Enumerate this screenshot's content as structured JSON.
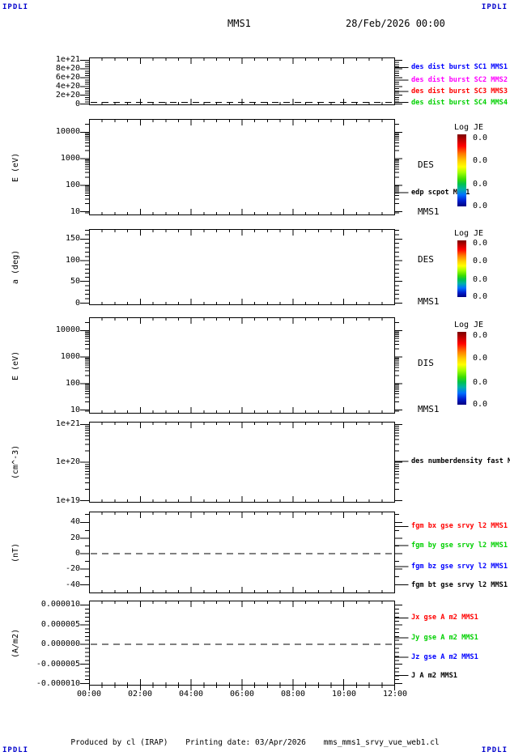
{
  "header": {
    "corner_left": "IPDLI",
    "corner_right": "IPDLI",
    "title": "MMS1",
    "datetime": "28/Feb/2026 00:00"
  },
  "footer": {
    "produced": "Produced by cl (IRAP)",
    "printing": "Printing date: 03/Apr/2026",
    "filename": "mms_mms1_srvy_vue_web1.cl",
    "corner_left": "IPDLI",
    "corner_right": "IPDLI"
  },
  "colors": {
    "brand_blue": "#0000cc",
    "trace_red": "#ff0000",
    "trace_green": "#00d000",
    "trace_blue": "#0000ff",
    "trace_magenta": "#ff00ff",
    "axis_black": "#000000"
  },
  "chart_data": {
    "type": "line",
    "title": "MMS1",
    "time_range": [
      "00:00",
      "12:00"
    ],
    "x_ticks": [
      "00:00",
      "02:00",
      "04:00",
      "06:00",
      "08:00",
      "10:00",
      "12:00"
    ],
    "x_minor_per_major": 4,
    "grid": false,
    "note": "All seven stacked panels are empty (no data traces drawn); only dashed zero-reference lines are visible in panels 1, 6 and 7. Colorbar tick labels all read 0.0.",
    "panels": [
      {
        "id": "des-dist-burst",
        "ylabel": "",
        "scale": "linear",
        "yrange": [
          0,
          1.05e+21
        ],
        "ndiv": 4,
        "dash_f": 0.95,
        "dash_value": 0,
        "yticks": [
          {
            "label": "1e+21",
            "f": 0.05
          },
          {
            "label": "8e+20",
            "f": 0.237
          },
          {
            "label": "6e+20",
            "f": 0.424
          },
          {
            "label": "4e+20",
            "f": 0.61
          },
          {
            "label": "2e+20",
            "f": 0.797
          },
          {
            "label": "0",
            "f": 0.983
          }
        ],
        "right_labels": [
          {
            "text": "des dist burst SC1 MMS1",
            "color": "#0000ff",
            "f": 0.203,
            "size": "sm",
            "connector": true
          },
          {
            "text": "des dist burst SC2 MMS2",
            "color": "#ff00ff",
            "f": 0.475,
            "size": "sm",
            "connector": true
          },
          {
            "text": "des dist burst SC3 MMS3",
            "color": "#ff0000",
            "f": 0.712,
            "size": "sm",
            "connector": true
          },
          {
            "text": "des dist burst SC4 MMS4",
            "color": "#00d000",
            "f": 0.949,
            "size": "sm",
            "connector": true
          }
        ]
      },
      {
        "id": "des-energy-spectrogram",
        "ylabel": "E (eV)",
        "scale": "log",
        "yrange": [
          10,
          30000
        ],
        "yticks": [
          {
            "label": "10000",
            "f": 0.134
          },
          {
            "label": "1000",
            "f": 0.412
          },
          {
            "label": "100",
            "f": 0.689
          },
          {
            "label": "10",
            "f": 0.966
          }
        ],
        "right_labels": [
          {
            "text": "DES",
            "color": "#000000",
            "f": 0.49,
            "size": "lg",
            "connector": false
          },
          {
            "text": "edp scpot MMS1",
            "color": "#000000",
            "f": 0.765,
            "size": "sm",
            "connector": true
          },
          {
            "text": "MMS1",
            "color": "#000000",
            "f": 0.975,
            "size": "lg",
            "connector": false
          }
        ],
        "colorbar": {
          "title": "Log JE",
          "ticks": [
            "0.0",
            "0.0",
            "0.0",
            "0.0"
          ]
        }
      },
      {
        "id": "des-pitch-angle",
        "ylabel": "a (deg)",
        "scale": "linear",
        "yrange": [
          0,
          175
        ],
        "ndiv": 5,
        "yticks": [
          {
            "label": "150",
            "f": 0.128
          },
          {
            "label": "100",
            "f": 0.415
          },
          {
            "label": "50",
            "f": 0.69
          },
          {
            "label": "0",
            "f": 0.978
          }
        ],
        "right_labels": [
          {
            "text": "DES",
            "color": "#000000",
            "f": 0.415,
            "size": "lg",
            "connector": false
          },
          {
            "text": "MMS1",
            "color": "#000000",
            "f": 0.968,
            "size": "lg",
            "connector": false
          }
        ],
        "colorbar": {
          "title": "Log JE",
          "ticks": [
            "0.0",
            "0.0",
            "0.0",
            "0.0"
          ]
        }
      },
      {
        "id": "dis-energy-spectrogram",
        "ylabel": "E (eV)",
        "scale": "log",
        "yrange": [
          10,
          30000
        ],
        "yticks": [
          {
            "label": "10000",
            "f": 0.134
          },
          {
            "label": "1000",
            "f": 0.412
          },
          {
            "label": "100",
            "f": 0.689
          },
          {
            "label": "10",
            "f": 0.966
          }
        ],
        "right_labels": [
          {
            "text": "DIS",
            "color": "#000000",
            "f": 0.487,
            "size": "lg",
            "connector": false
          },
          {
            "text": "MMS1",
            "color": "#000000",
            "f": 0.966,
            "size": "lg",
            "connector": false
          }
        ],
        "colorbar": {
          "title": "Log JE",
          "ticks": [
            "0.0",
            "0.0",
            "0.0",
            "0.0"
          ]
        }
      },
      {
        "id": "des-numberdensity",
        "ylabel": "(cm^-3)",
        "scale": "log",
        "yrange": [
          1e+19,
          1.1e+21
        ],
        "yticks": [
          {
            "label": "1e+21",
            "f": 0.03
          },
          {
            "label": "1e+20",
            "f": 0.5
          },
          {
            "label": "1e+19",
            "f": 0.98
          }
        ],
        "right_labels": [
          {
            "text": "des numberdensity fast M",
            "color": "#000000",
            "f": 0.49,
            "size": "sm",
            "connector": true
          }
        ]
      },
      {
        "id": "fgm-magnetic-field",
        "ylabel": "(nT)",
        "scale": "linear",
        "yrange": [
          -52,
          52
        ],
        "ndiv": 2,
        "dash_f": 0.515,
        "dash_value": 0,
        "yticks": [
          {
            "label": "40",
            "f": 0.129
          },
          {
            "label": "20",
            "f": 0.327
          },
          {
            "label": "0",
            "f": 0.515
          },
          {
            "label": "-20",
            "f": 0.703
          },
          {
            "label": "-40",
            "f": 0.9
          }
        ],
        "right_labels": [
          {
            "text": "fgm bx gse srvy l2 MMS1",
            "color": "#ff0000",
            "f": 0.178,
            "size": "sm",
            "connector": true
          },
          {
            "text": "fgm by gse srvy l2 MMS1",
            "color": "#00d000",
            "f": 0.416,
            "size": "sm",
            "connector": true
          },
          {
            "text": "fgm bz gse srvy l2 MMS1",
            "color": "#0000ff",
            "f": 0.673,
            "size": "sm",
            "connector": true
          },
          {
            "text": "fgm bt gse srvy l2 MMS1",
            "color": "#000000",
            "f": 0.9,
            "size": "sm",
            "connector": true
          }
        ]
      },
      {
        "id": "current-density",
        "ylabel": "(A/m2)",
        "scale": "linear",
        "yrange": [
          -1.1e-05,
          1.1e-05
        ],
        "ndiv": 5,
        "dash_f": 0.514,
        "dash_value": 0,
        "yticks": [
          {
            "label": "0.000010",
            "f": 0.048
          },
          {
            "label": "0.000005",
            "f": 0.286
          },
          {
            "label": "0.000000",
            "f": 0.514
          },
          {
            "label": "-0.000005",
            "f": 0.752
          },
          {
            "label": "-0.000010",
            "f": 0.98
          }
        ],
        "right_labels": [
          {
            "text": "Jx gse A m2 MMS1",
            "color": "#ff0000",
            "f": 0.2,
            "size": "sm",
            "connector": true
          },
          {
            "text": "Jy gse A m2 MMS1",
            "color": "#00d000",
            "f": 0.438,
            "size": "sm",
            "connector": true
          },
          {
            "text": "Jz gse A m2 MMS1",
            "color": "#0000ff",
            "f": 0.667,
            "size": "sm",
            "connector": true
          },
          {
            "text": "J A m2 MMS1",
            "color": "#000000",
            "f": 0.886,
            "size": "sm",
            "connector": true
          }
        ]
      }
    ]
  }
}
